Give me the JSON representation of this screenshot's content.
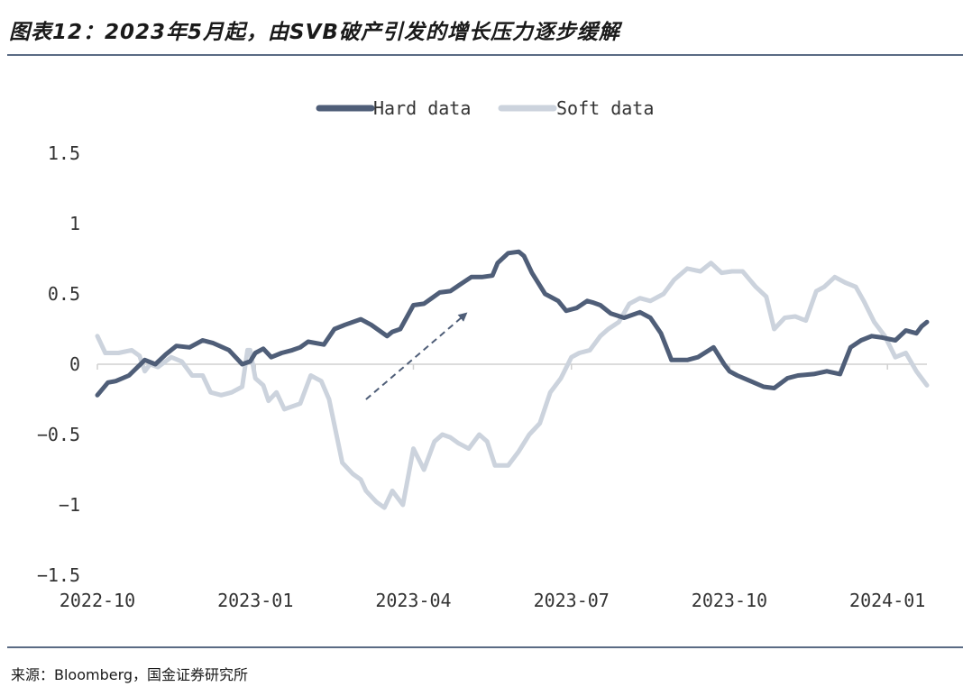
{
  "title": "图表12：2023年5月起，由SVB破产引发的增长压力逐步缓解",
  "source": "来源：Bloomberg，国金证券研究所",
  "colors": {
    "hard": "#4f5e78",
    "soft": "#ccd3dd",
    "zero": "#d0d0d0",
    "arrow": "#4f5e78",
    "rule": "#5a6b84"
  },
  "chart_data": {
    "type": "line",
    "title": "",
    "xlabel": "",
    "ylabel": "",
    "ylim": [
      -1.5,
      1.5
    ],
    "yticks": [
      1.5,
      1,
      0.5,
      0,
      -0.5,
      -1,
      -1.5
    ],
    "ytick_labels": [
      "1.5",
      "1",
      "0.5",
      "0",
      "−0.5",
      "−1",
      "−1.5"
    ],
    "xlim": [
      0,
      15.75
    ],
    "xticks": [
      0,
      3,
      6,
      9,
      12,
      15
    ],
    "xtick_labels": [
      "2022-10",
      "2023-01",
      "2023-04",
      "2023-07",
      "2023-10",
      "2024-01"
    ],
    "x_unit": "months since 2022-10",
    "legend_position": "top-center",
    "series": [
      {
        "name": "Hard data",
        "key": "hard",
        "x": [
          0,
          0.2,
          0.35,
          0.6,
          0.9,
          1.1,
          1.3,
          1.5,
          1.75,
          2.0,
          2.2,
          2.5,
          2.75,
          2.9,
          3.0,
          3.15,
          3.3,
          3.5,
          3.7,
          3.85,
          4.0,
          4.3,
          4.5,
          4.7,
          5.0,
          5.2,
          5.5,
          5.6,
          5.75,
          6.0,
          6.2,
          6.35,
          6.5,
          6.7,
          6.9,
          7.1,
          7.3,
          7.5,
          7.6,
          7.8,
          8.0,
          8.1,
          8.25,
          8.5,
          8.75,
          8.9,
          9.1,
          9.3,
          9.4,
          9.55,
          9.75,
          10.0,
          10.3,
          10.5,
          10.7,
          10.9,
          11.2,
          11.4,
          11.7,
          11.9,
          12.0,
          12.15,
          12.4,
          12.65,
          12.85,
          13.1,
          13.3,
          13.6,
          13.85,
          14.1,
          14.3,
          14.5,
          14.7,
          14.9,
          15.15,
          15.35,
          15.55,
          15.65,
          15.75
        ],
        "values": [
          -0.22,
          -0.13,
          -0.12,
          -0.08,
          0.03,
          0.0,
          0.07,
          0.13,
          0.12,
          0.17,
          0.15,
          0.1,
          0.0,
          0.02,
          0.08,
          0.11,
          0.05,
          0.08,
          0.1,
          0.12,
          0.16,
          0.14,
          0.25,
          0.28,
          0.32,
          0.28,
          0.2,
          0.23,
          0.25,
          0.42,
          0.43,
          0.47,
          0.51,
          0.52,
          0.57,
          0.62,
          0.62,
          0.63,
          0.72,
          0.79,
          0.8,
          0.77,
          0.65,
          0.5,
          0.45,
          0.38,
          0.4,
          0.45,
          0.44,
          0.42,
          0.36,
          0.33,
          0.37,
          0.33,
          0.22,
          0.03,
          0.03,
          0.05,
          0.12,
          0.0,
          -0.05,
          -0.08,
          -0.12,
          -0.16,
          -0.17,
          -0.1,
          -0.08,
          -0.07,
          -0.05,
          -0.07,
          0.12,
          0.17,
          0.2,
          0.19,
          0.17,
          0.24,
          0.22,
          0.27,
          0.3
        ]
      },
      {
        "name": "Soft data",
        "key": "soft",
        "x": [
          0,
          0.15,
          0.4,
          0.65,
          0.8,
          0.9,
          1.0,
          1.15,
          1.4,
          1.6,
          1.8,
          2.0,
          2.15,
          2.35,
          2.55,
          2.75,
          2.85,
          2.9,
          3.0,
          3.15,
          3.25,
          3.4,
          3.55,
          3.7,
          3.85,
          4.05,
          4.25,
          4.4,
          4.65,
          4.85,
          5.0,
          5.1,
          5.3,
          5.45,
          5.6,
          5.8,
          6.0,
          6.2,
          6.4,
          6.55,
          6.7,
          6.85,
          7.05,
          7.25,
          7.4,
          7.55,
          7.8,
          8.0,
          8.2,
          8.4,
          8.6,
          8.8,
          9.0,
          9.15,
          9.35,
          9.55,
          9.7,
          9.9,
          10.1,
          10.3,
          10.5,
          10.75,
          10.95,
          11.2,
          11.45,
          11.65,
          11.85,
          12.05,
          12.25,
          12.5,
          12.7,
          12.85,
          13.05,
          13.25,
          13.45,
          13.65,
          13.8,
          14.0,
          14.2,
          14.4,
          14.55,
          14.75,
          14.95,
          15.15,
          15.35,
          15.55,
          15.75
        ],
        "values": [
          0.2,
          0.08,
          0.08,
          0.1,
          0.06,
          -0.05,
          0.0,
          -0.02,
          0.05,
          0.02,
          -0.08,
          -0.08,
          -0.2,
          -0.22,
          -0.2,
          -0.16,
          0.1,
          0.1,
          -0.1,
          -0.15,
          -0.26,
          -0.2,
          -0.32,
          -0.3,
          -0.28,
          -0.08,
          -0.12,
          -0.25,
          -0.7,
          -0.78,
          -0.82,
          -0.9,
          -0.98,
          -1.02,
          -0.9,
          -1.0,
          -0.6,
          -0.75,
          -0.55,
          -0.5,
          -0.52,
          -0.56,
          -0.6,
          -0.5,
          -0.55,
          -0.72,
          -0.72,
          -0.62,
          -0.5,
          -0.42,
          -0.2,
          -0.1,
          0.05,
          0.08,
          0.1,
          0.2,
          0.25,
          0.3,
          0.43,
          0.47,
          0.45,
          0.5,
          0.6,
          0.68,
          0.66,
          0.72,
          0.65,
          0.66,
          0.66,
          0.55,
          0.48,
          0.25,
          0.33,
          0.34,
          0.31,
          0.52,
          0.55,
          0.62,
          0.58,
          0.55,
          0.45,
          0.3,
          0.2,
          0.05,
          0.08,
          -0.05,
          -0.15
        ]
      }
    ],
    "annotations": [
      {
        "type": "arrow",
        "from": [
          5.1,
          -0.25
        ],
        "to": [
          7.0,
          0.36
        ],
        "style": "dashed"
      }
    ]
  }
}
